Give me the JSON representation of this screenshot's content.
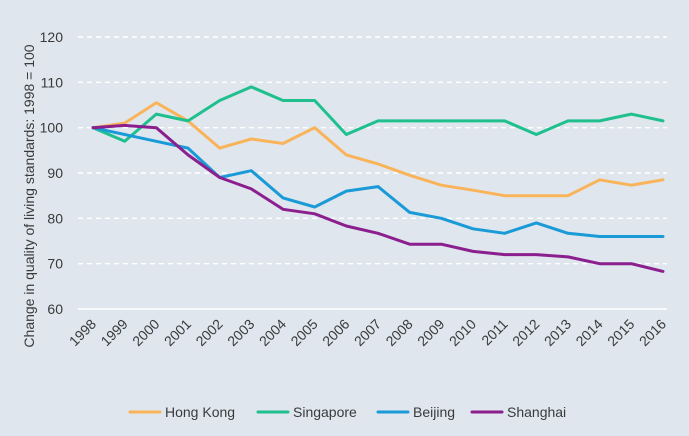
{
  "chart_data": {
    "type": "line",
    "title": "",
    "xlabel": "",
    "ylabel": "Change in quality of living standards: 1998 = 100",
    "ylim": [
      60,
      120
    ],
    "yticks": [
      60,
      70,
      80,
      90,
      100,
      110,
      120
    ],
    "grid": true,
    "legend_position": "bottom",
    "categories": [
      "1998",
      "1999",
      "2000",
      "2001",
      "2002",
      "2003",
      "2004",
      "2005",
      "2006",
      "2007",
      "2008",
      "2009",
      "2010",
      "2011",
      "2012",
      "2013",
      "2014",
      "2015",
      "2016"
    ],
    "series": [
      {
        "name": "Hong Kong",
        "color": "#f9b45a",
        "values": [
          100,
          101,
          105.5,
          101.5,
          95.5,
          97.5,
          96.5,
          100,
          94,
          92,
          89.5,
          87.3,
          86.2,
          85,
          85,
          85,
          88.5,
          87.3,
          88.5
        ]
      },
      {
        "name": "Singapore",
        "color": "#1fc08e",
        "values": [
          100,
          97,
          103,
          101.5,
          106,
          109,
          106,
          106,
          98.5,
          101.5,
          101.5,
          101.5,
          101.5,
          101.5,
          98.5,
          101.5,
          101.5,
          103,
          101.5
        ]
      },
      {
        "name": "Beijing",
        "color": "#1a9ad6",
        "values": [
          100,
          98.5,
          97,
          95.5,
          89,
          90.5,
          84.5,
          82.5,
          86,
          87,
          81.3,
          80,
          77.7,
          76.7,
          79,
          76.7,
          76,
          76,
          76
        ]
      },
      {
        "name": "Shanghai",
        "color": "#8b1f8e",
        "values": [
          100,
          100.5,
          100,
          94,
          89,
          86.5,
          82,
          81,
          78.3,
          76.7,
          74.3,
          74.3,
          72.7,
          72,
          72,
          71.5,
          70,
          70,
          68.3
        ]
      }
    ]
  }
}
